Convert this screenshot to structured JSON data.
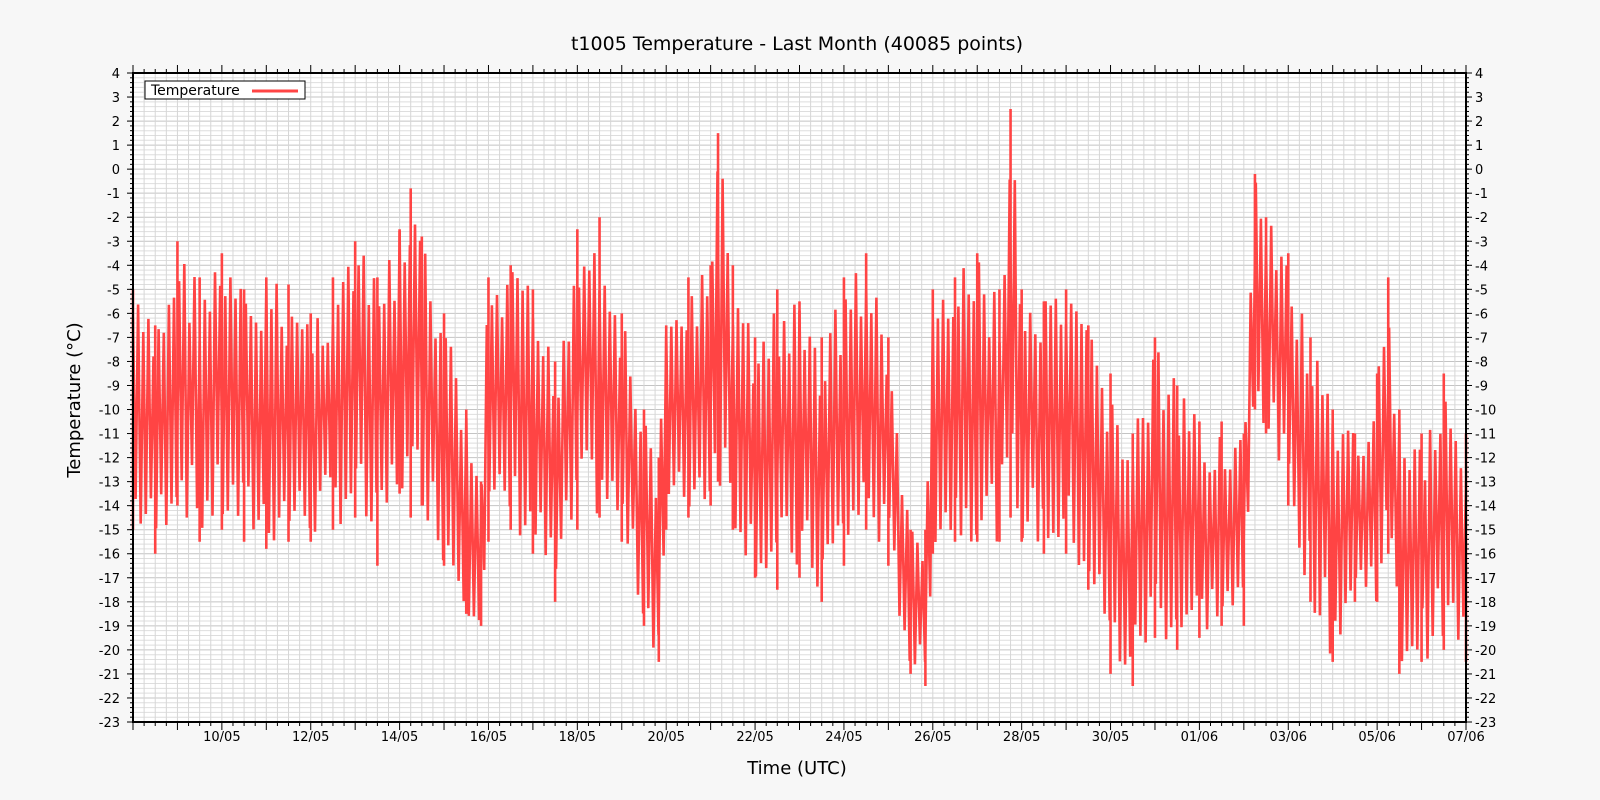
{
  "chart_data": {
    "type": "line",
    "title": "t1005 Temperature - Last Month (40085 points)",
    "xlabel": "Time (UTC)",
    "ylabel": "Temperature (°C)",
    "ylim": [
      -23,
      4
    ],
    "xlim": [
      "2024-05-08 00:00",
      "2024-06-07 00:00"
    ],
    "x_tick_labels": [
      "10/05",
      "12/05",
      "14/05",
      "16/05",
      "18/05",
      "20/05",
      "22/05",
      "24/05",
      "26/05",
      "28/05",
      "30/05",
      "01/06",
      "03/06",
      "05/06",
      "07/06"
    ],
    "x_tick_dates": [
      "2024-05-10",
      "2024-05-12",
      "2024-05-14",
      "2024-05-16",
      "2024-05-18",
      "2024-05-20",
      "2024-05-22",
      "2024-05-24",
      "2024-05-26",
      "2024-05-28",
      "2024-05-30",
      "2024-06-01",
      "2024-06-03",
      "2024-06-05",
      "2024-06-07"
    ],
    "y_tick_labels": [
      "4",
      "3",
      "2",
      "1",
      "0",
      "-1",
      "-2",
      "-3",
      "-4",
      "-5",
      "-6",
      "-7",
      "-8",
      "-9",
      "-10",
      "-11",
      "-12",
      "-13",
      "-14",
      "-15",
      "-16",
      "-17",
      "-18",
      "-19",
      "-20",
      "-21",
      "-22",
      "-23"
    ],
    "grid": true,
    "legend_position": "top-left",
    "series": [
      {
        "name": "Temperature",
        "color": "#ff4444",
        "envelope": [
          {
            "x": "2024-05-08 00:00",
            "high": -5.0,
            "low": -15.0
          },
          {
            "x": "2024-05-08 12:00",
            "high": -6.5,
            "low": -16.0
          },
          {
            "x": "2024-05-09 00:00",
            "high": -3.0,
            "low": -14.0
          },
          {
            "x": "2024-05-09 12:00",
            "high": -4.5,
            "low": -15.5
          },
          {
            "x": "2024-05-10 00:00",
            "high": -3.5,
            "low": -15.0
          },
          {
            "x": "2024-05-10 12:00",
            "high": -5.0,
            "low": -15.5
          },
          {
            "x": "2024-05-11 00:00",
            "high": -4.5,
            "low": -15.8
          },
          {
            "x": "2024-05-11 12:00",
            "high": -4.8,
            "low": -15.5
          },
          {
            "x": "2024-05-12 00:00",
            "high": -6.0,
            "low": -15.5
          },
          {
            "x": "2024-05-12 12:00",
            "high": -4.5,
            "low": -15.0
          },
          {
            "x": "2024-05-13 00:00",
            "high": -3.0,
            "low": -14.5
          },
          {
            "x": "2024-05-13 12:00",
            "high": -4.5,
            "low": -16.5
          },
          {
            "x": "2024-05-14 00:00",
            "high": -2.5,
            "low": -13.5
          },
          {
            "x": "2024-05-14 06:00",
            "high": -0.8,
            "low": -14.5
          },
          {
            "x": "2024-05-14 12:00",
            "high": -2.8,
            "low": -14.0
          },
          {
            "x": "2024-05-15 00:00",
            "high": -6.0,
            "low": -16.5
          },
          {
            "x": "2024-05-15 12:00",
            "high": -10.0,
            "low": -18.5
          },
          {
            "x": "2024-05-15 20:00",
            "high": -13.0,
            "low": -19.0
          },
          {
            "x": "2024-05-16 00:00",
            "high": -4.5,
            "low": -15.5
          },
          {
            "x": "2024-05-16 12:00",
            "high": -4.0,
            "low": -15.0
          },
          {
            "x": "2024-05-17 00:00",
            "high": -5.0,
            "low": -16.0
          },
          {
            "x": "2024-05-17 12:00",
            "high": -8.0,
            "low": -18.0
          },
          {
            "x": "2024-05-18 00:00",
            "high": -2.5,
            "low": -15.0
          },
          {
            "x": "2024-05-18 12:00",
            "high": -2.0,
            "low": -14.5
          },
          {
            "x": "2024-05-19 00:00",
            "high": -6.0,
            "low": -15.5
          },
          {
            "x": "2024-05-19 12:00",
            "high": -10.0,
            "low": -19.0
          },
          {
            "x": "2024-05-19 20:00",
            "high": -12.0,
            "low": -20.5
          },
          {
            "x": "2024-05-20 00:00",
            "high": -6.5,
            "low": -15.0
          },
          {
            "x": "2024-05-20 12:00",
            "high": -4.5,
            "low": -14.5
          },
          {
            "x": "2024-05-21 00:00",
            "high": -4.0,
            "low": -14.0
          },
          {
            "x": "2024-05-21 04:00",
            "high": 1.5,
            "low": -13.0
          },
          {
            "x": "2024-05-21 12:00",
            "high": -4.0,
            "low": -15.0
          },
          {
            "x": "2024-05-22 00:00",
            "high": -7.0,
            "low": -17.0
          },
          {
            "x": "2024-05-22 12:00",
            "high": -5.0,
            "low": -17.5
          },
          {
            "x": "2024-05-23 00:00",
            "high": -5.5,
            "low": -17.0
          },
          {
            "x": "2024-05-23 12:00",
            "high": -7.0,
            "low": -18.0
          },
          {
            "x": "2024-05-24 00:00",
            "high": -4.5,
            "low": -16.5
          },
          {
            "x": "2024-05-24 12:00",
            "high": -3.5,
            "low": -15.0
          },
          {
            "x": "2024-05-25 00:00",
            "high": -7.0,
            "low": -16.5
          },
          {
            "x": "2024-05-25 12:00",
            "high": -15.0,
            "low": -21.0
          },
          {
            "x": "2024-05-25 20:00",
            "high": -15.0,
            "low": -21.5
          },
          {
            "x": "2024-05-26 00:00",
            "high": -5.0,
            "low": -16.0
          },
          {
            "x": "2024-05-26 12:00",
            "high": -4.5,
            "low": -15.5
          },
          {
            "x": "2024-05-27 00:00",
            "high": -3.5,
            "low": -15.5
          },
          {
            "x": "2024-05-27 12:00",
            "high": -5.0,
            "low": -15.5
          },
          {
            "x": "2024-05-27 18:00",
            "high": 2.5,
            "low": -14.5
          },
          {
            "x": "2024-05-28 00:00",
            "high": -5.0,
            "low": -15.5
          },
          {
            "x": "2024-05-28 12:00",
            "high": -5.5,
            "low": -16.0
          },
          {
            "x": "2024-05-29 00:00",
            "high": -5.0,
            "low": -16.0
          },
          {
            "x": "2024-05-29 12:00",
            "high": -6.5,
            "low": -17.5
          },
          {
            "x": "2024-05-30 00:00",
            "high": -8.5,
            "low": -21.0
          },
          {
            "x": "2024-05-30 12:00",
            "high": -11.0,
            "low": -21.5
          },
          {
            "x": "2024-05-31 00:00",
            "high": -7.0,
            "low": -19.5
          },
          {
            "x": "2024-05-31 12:00",
            "high": -9.0,
            "low": -20.0
          },
          {
            "x": "2024-06-01 00:00",
            "high": -10.5,
            "low": -19.5
          },
          {
            "x": "2024-06-01 12:00",
            "high": -10.5,
            "low": -19.0
          },
          {
            "x": "2024-06-02 00:00",
            "high": -11.0,
            "low": -19.0
          },
          {
            "x": "2024-06-02 06:00",
            "high": -0.2,
            "low": -10.0
          },
          {
            "x": "2024-06-02 12:00",
            "high": -2.0,
            "low": -11.0
          },
          {
            "x": "2024-06-03 00:00",
            "high": -3.5,
            "low": -14.0
          },
          {
            "x": "2024-06-03 12:00",
            "high": -7.0,
            "low": -18.0
          },
          {
            "x": "2024-06-04 00:00",
            "high": -10.0,
            "low": -20.5
          },
          {
            "x": "2024-06-04 12:00",
            "high": -11.0,
            "low": -18.0
          },
          {
            "x": "2024-06-05 00:00",
            "high": -8.5,
            "low": -18.0
          },
          {
            "x": "2024-06-05 06:00",
            "high": -4.5,
            "low": -16.0
          },
          {
            "x": "2024-06-05 12:00",
            "high": -10.0,
            "low": -21.0
          },
          {
            "x": "2024-06-06 00:00",
            "high": -11.0,
            "low": -20.5
          },
          {
            "x": "2024-06-06 12:00",
            "high": -8.5,
            "low": -20.0
          },
          {
            "x": "2024-06-07 00:00",
            "high": -11.0,
            "low": -20.5
          }
        ]
      }
    ]
  }
}
